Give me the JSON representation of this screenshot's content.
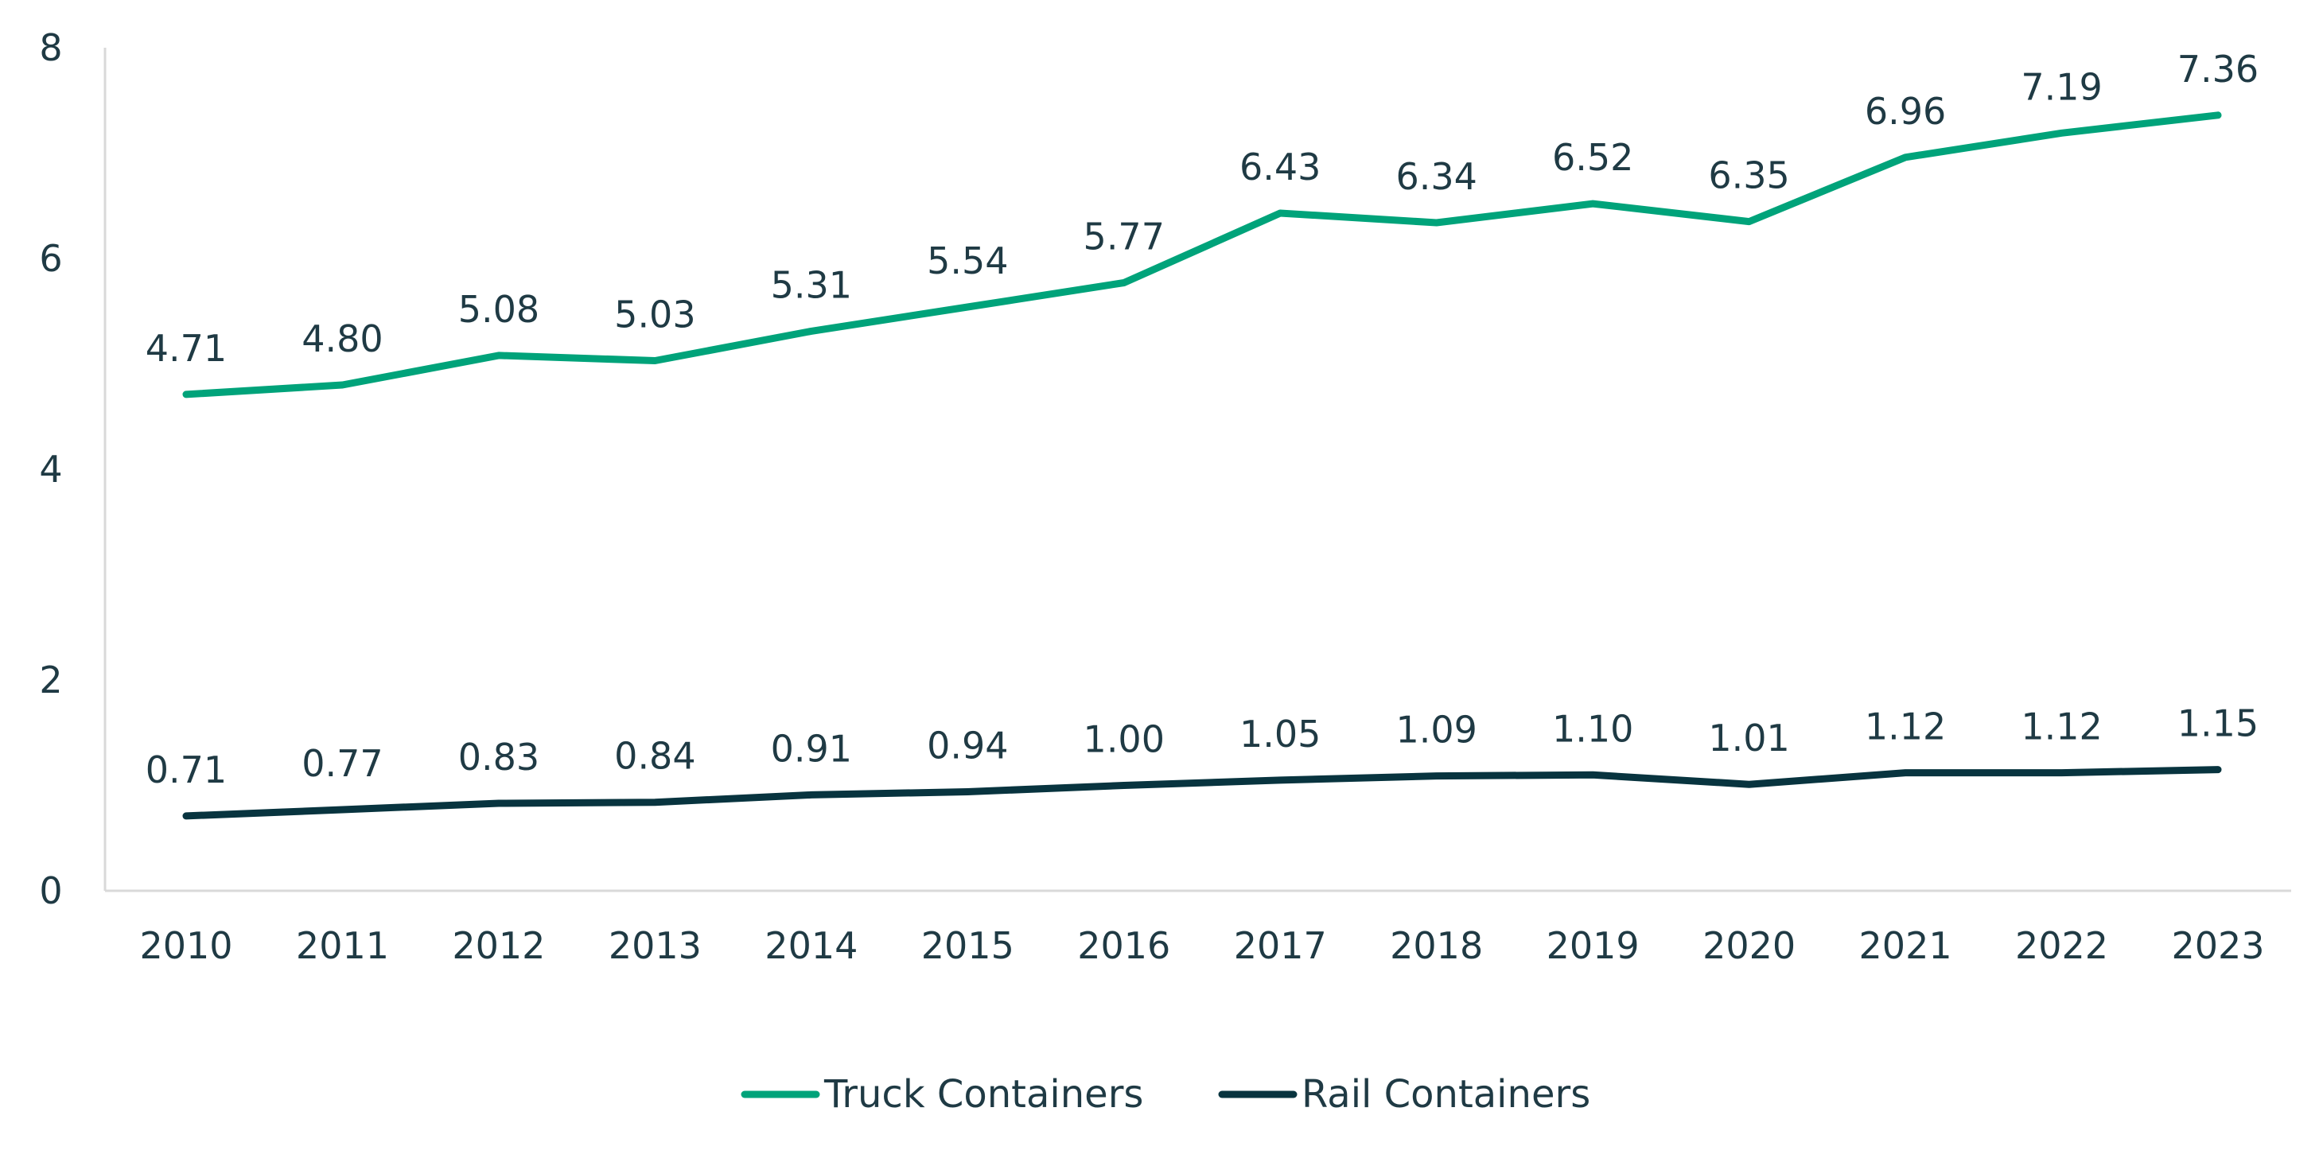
{
  "chart_data": {
    "type": "line",
    "title": "",
    "xlabel": "",
    "ylabel": "",
    "categories": [
      "2010",
      "2011",
      "2012",
      "2013",
      "2014",
      "2015",
      "2016",
      "2017",
      "2018",
      "2019",
      "2020",
      "2021",
      "2022",
      "2023"
    ],
    "ylim": [
      0,
      8
    ],
    "yticks": [
      0,
      2,
      4,
      6,
      8
    ],
    "grid": false,
    "legend_position": "bottom",
    "series": [
      {
        "name": "Truck Containers",
        "color": "#00a37a",
        "values": [
          4.71,
          4.8,
          5.08,
          5.03,
          5.31,
          5.54,
          5.77,
          6.43,
          6.34,
          6.52,
          6.35,
          6.96,
          7.19,
          7.36
        ],
        "labels": [
          "4.71",
          "4.80",
          "5.08",
          "5.03",
          "5.31",
          "5.54",
          "5.77",
          "6.43",
          "6.34",
          "6.52",
          "6.35",
          "6.96",
          "7.19",
          "7.36"
        ]
      },
      {
        "name": "Rail Containers",
        "color": "#08343f",
        "values": [
          0.71,
          0.77,
          0.83,
          0.84,
          0.91,
          0.94,
          1.0,
          1.05,
          1.09,
          1.1,
          1.01,
          1.12,
          1.12,
          1.15
        ],
        "labels": [
          "0.71",
          "0.77",
          "0.83",
          "0.84",
          "0.91",
          "0.94",
          "1.00",
          "1.05",
          "1.09",
          "1.10",
          "1.01",
          "1.12",
          "1.12",
          "1.15"
        ]
      }
    ],
    "axis_color": "#d9d9d9",
    "text_color": "#1f3a44"
  }
}
